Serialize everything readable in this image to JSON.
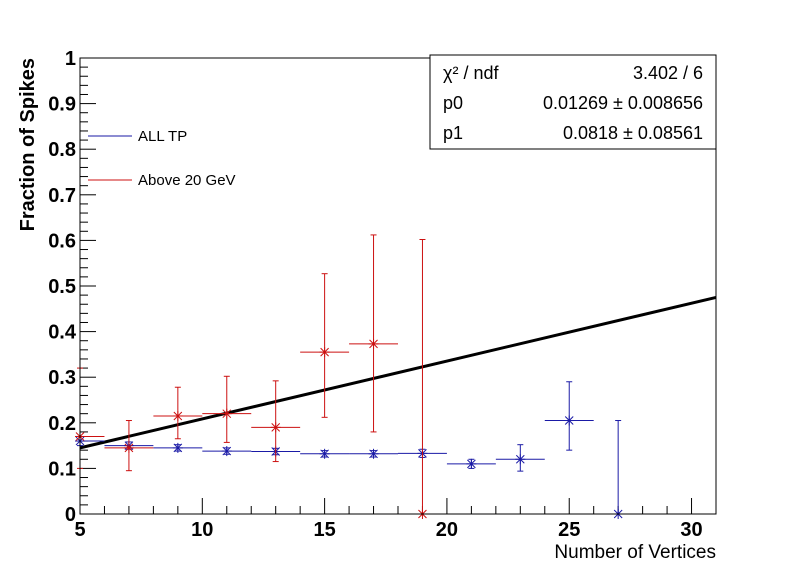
{
  "chart_data": {
    "type": "scatter",
    "xlabel": "Number of Vertices",
    "ylabel": "Fraction of Spikes",
    "xlim": [
      5,
      31
    ],
    "ylim": [
      0,
      1
    ],
    "x_ticks": [
      5,
      10,
      15,
      20,
      25,
      30
    ],
    "y_ticks": [
      0,
      0.1,
      0.2,
      0.3,
      0.4,
      0.5,
      0.6,
      0.7,
      0.8,
      0.9,
      1
    ],
    "x_tick_labels": [
      "5",
      "10",
      "15",
      "20",
      "25",
      "30"
    ],
    "y_tick_labels": [
      "0",
      "0.1",
      "0.2",
      "0.3",
      "0.4",
      "0.5",
      "0.6",
      "0.7",
      "0.8",
      "0.9",
      "1"
    ],
    "series": [
      {
        "name": "ALL TP",
        "color": "#1a1aa6",
        "points": [
          {
            "x": 5,
            "y": 0.16,
            "xerr": 1,
            "ylo": 0.15,
            "yhi": 0.17
          },
          {
            "x": 7,
            "y": 0.15,
            "xerr": 1,
            "ylo": 0.142,
            "yhi": 0.158
          },
          {
            "x": 9,
            "y": 0.145,
            "xerr": 1,
            "ylo": 0.138,
            "yhi": 0.152
          },
          {
            "x": 11,
            "y": 0.138,
            "xerr": 1,
            "ylo": 0.131,
            "yhi": 0.145
          },
          {
            "x": 13,
            "y": 0.137,
            "xerr": 1,
            "ylo": 0.13,
            "yhi": 0.144
          },
          {
            "x": 15,
            "y": 0.132,
            "xerr": 1,
            "ylo": 0.125,
            "yhi": 0.139
          },
          {
            "x": 17,
            "y": 0.132,
            "xerr": 1,
            "ylo": 0.125,
            "yhi": 0.139
          },
          {
            "x": 19,
            "y": 0.133,
            "xerr": 1,
            "ylo": 0.124,
            "yhi": 0.142
          },
          {
            "x": 21,
            "y": 0.11,
            "xerr": 1,
            "ylo": 0.1,
            "yhi": 0.12
          },
          {
            "x": 23,
            "y": 0.12,
            "xerr": 1,
            "ylo": 0.094,
            "yhi": 0.152
          },
          {
            "x": 25,
            "y": 0.205,
            "xerr": 1,
            "ylo": 0.14,
            "yhi": 0.29
          },
          {
            "x": 27,
            "y": 0.0,
            "xerr": 1,
            "ylo": 0.0,
            "yhi": 0.205
          }
        ]
      },
      {
        "name": "Above 20 GeV",
        "color": "#cc1111",
        "points": [
          {
            "x": 5,
            "y": 0.17,
            "xerr": 1,
            "ylo": 0.1,
            "yhi": 0.32
          },
          {
            "x": 7,
            "y": 0.145,
            "xerr": 1,
            "ylo": 0.095,
            "yhi": 0.205
          },
          {
            "x": 9,
            "y": 0.215,
            "xerr": 1,
            "ylo": 0.165,
            "yhi": 0.278
          },
          {
            "x": 11,
            "y": 0.22,
            "xerr": 1,
            "ylo": 0.157,
            "yhi": 0.302
          },
          {
            "x": 13,
            "y": 0.19,
            "xerr": 1,
            "ylo": 0.115,
            "yhi": 0.292
          },
          {
            "x": 15,
            "y": 0.355,
            "xerr": 1,
            "ylo": 0.212,
            "yhi": 0.527
          },
          {
            "x": 17,
            "y": 0.373,
            "xerr": 1,
            "ylo": 0.18,
            "yhi": 0.612
          },
          {
            "x": 19,
            "y": 0.0,
            "xerr": 1,
            "ylo": 0.0,
            "yhi": 0.602
          }
        ]
      }
    ],
    "fit_line": {
      "color": "#000000",
      "x": [
        5,
        31
      ],
      "y": [
        0.145,
        0.475
      ]
    },
    "stats_box": {
      "rows": [
        {
          "label": "χ² / ndf",
          "value": "3.402 / 6"
        },
        {
          "label": "p0",
          "value": "0.01269 ± 0.008656"
        },
        {
          "label": "p1",
          "value": "0.0818 ± 0.08561"
        }
      ]
    },
    "legend": [
      {
        "label": "ALL TP",
        "color": "#1a1aa6"
      },
      {
        "label": "Above 20 GeV",
        "color": "#cc1111"
      }
    ]
  }
}
